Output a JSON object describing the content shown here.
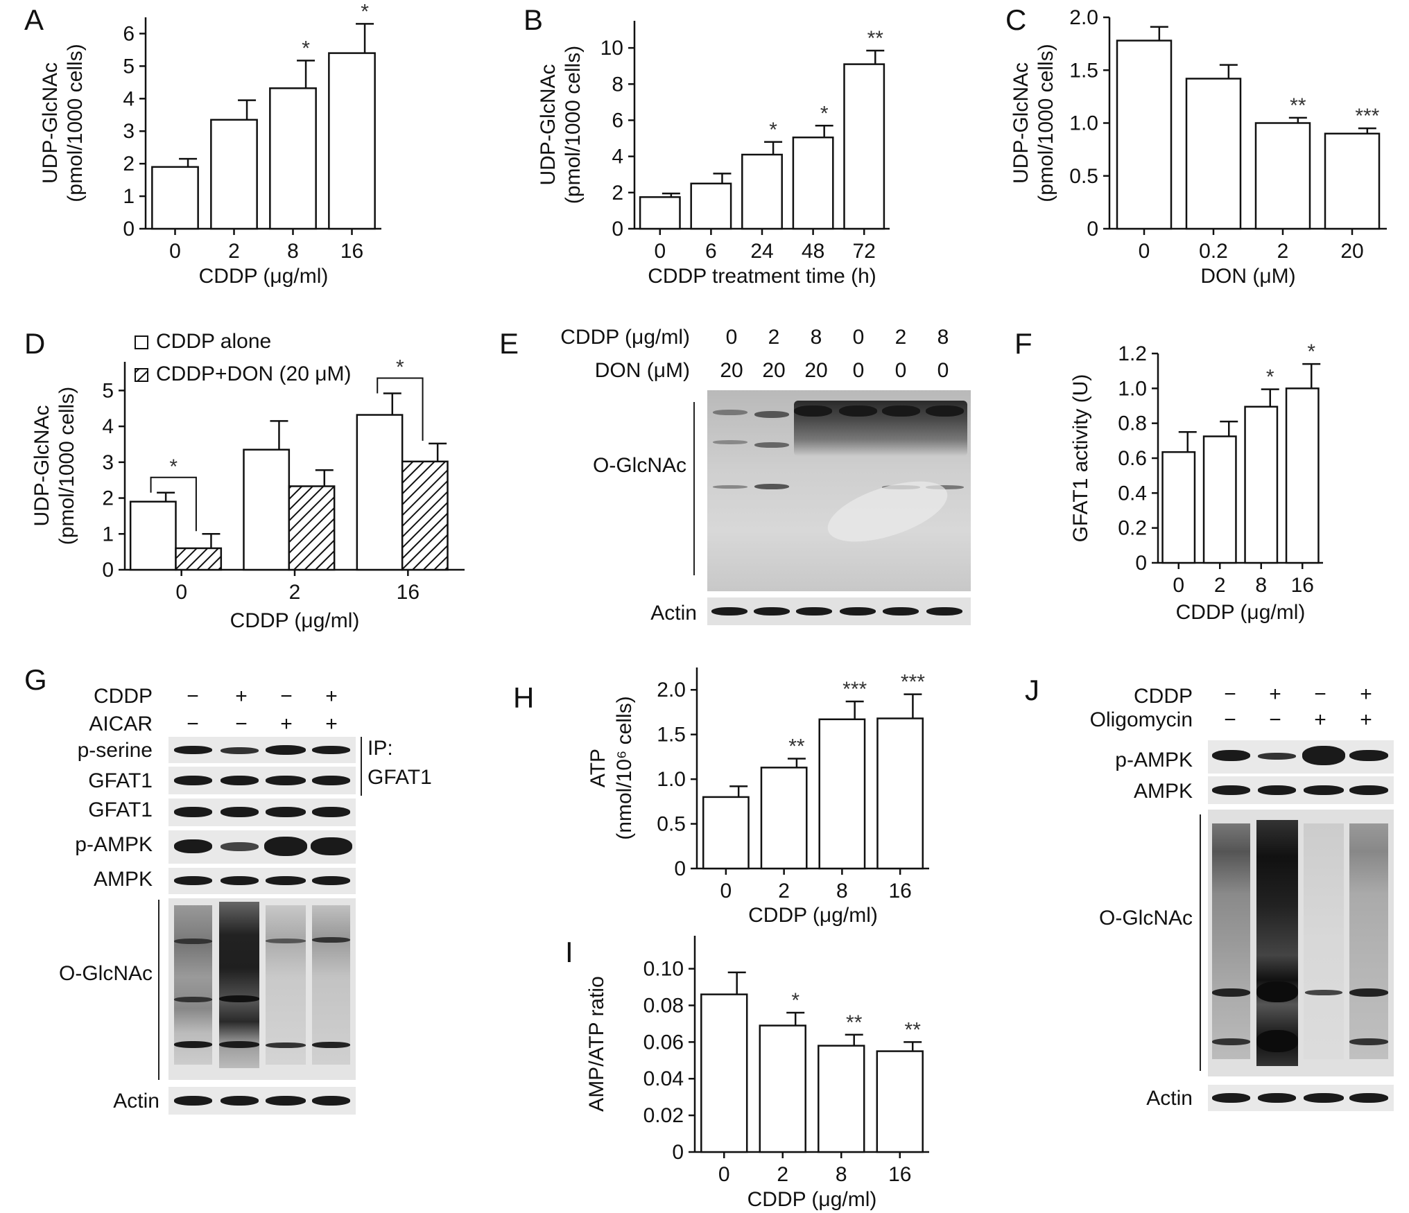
{
  "panels": {
    "A": {
      "letter": "A",
      "ylabel_line1": "UDP-GlcNAc",
      "ylabel_line2": "(pmol/1000 cells)",
      "xlabel": "CDDP (μg/ml)"
    },
    "B": {
      "letter": "B",
      "ylabel_line1": "UDP-GlcNAc",
      "ylabel_line2": "(pmol/1000 cells)",
      "xlabel": "CDDP treatment time (h)"
    },
    "C": {
      "letter": "C",
      "ylabel_line1": "UDP-GlcNAc",
      "ylabel_line2": "(pmol/1000 cells)",
      "xlabel": "DON (μM)"
    },
    "D": {
      "letter": "D",
      "ylabel_line1": "UDP-GlcNAc",
      "ylabel_line2": "(pmol/1000 cells)",
      "xlabel": "CDDP (μg/ml)",
      "legend": [
        "CDDP alone",
        "CDDP+DON (20 μM)"
      ]
    },
    "E": {
      "letter": "E",
      "row_labels": [
        "CDDP (μg/ml)",
        "DON (μM)"
      ],
      "cddp_values": [
        "0",
        "2",
        "8",
        "0",
        "2",
        "8"
      ],
      "don_values": [
        "20",
        "20",
        "20",
        "0",
        "0",
        "0"
      ],
      "blot_labels": [
        "O-GlcNAc",
        "Actin"
      ]
    },
    "F": {
      "letter": "F",
      "ylabel_line1": "GFAT1 activity (U)",
      "xlabel": "CDDP (μg/ml)"
    },
    "G": {
      "letter": "G",
      "row_labels": [
        "CDDP",
        "AICAR"
      ],
      "cddp_signs": [
        "−",
        "+",
        "−",
        "+"
      ],
      "aicar_signs": [
        "−",
        "−",
        "+",
        "+"
      ],
      "blot_labels": [
        "p-serine",
        "GFAT1",
        "GFAT1",
        "p-AMPK",
        "AMPK",
        "O-GlcNAc",
        "Actin"
      ],
      "ip_label_line1": "IP:",
      "ip_label_line2": "GFAT1"
    },
    "H": {
      "letter": "H",
      "ylabel_line1": "ATP",
      "ylabel_line2": "(nmol/10⁶ cells)",
      "xlabel": "CDDP (μg/ml)"
    },
    "I": {
      "letter": "I",
      "ylabel_line1": "AMP/ATP ratio",
      "xlabel": "CDDP (μg/ml)"
    },
    "J": {
      "letter": "J",
      "row_labels": [
        "CDDP",
        "Oligomycin"
      ],
      "cddp_signs": [
        "−",
        "+",
        "−",
        "+"
      ],
      "oligo_signs": [
        "−",
        "−",
        "+",
        "+"
      ],
      "blot_labels": [
        "p-AMPK",
        "AMPK",
        "O-GlcNAc",
        "Actin"
      ]
    }
  },
  "chart_data": [
    {
      "panel": "A",
      "type": "bar",
      "categories": [
        "0",
        "2",
        "8",
        "16"
      ],
      "values": [
        1.9,
        3.35,
        4.32,
        5.4
      ],
      "errors": [
        0.25,
        0.6,
        0.85,
        0.9
      ],
      "significance": [
        "",
        "",
        "*",
        "*"
      ],
      "ylim": [
        0,
        6.5
      ],
      "yticks": [
        0,
        1,
        2,
        3,
        4,
        5,
        6
      ],
      "ylabel": "UDP-GlcNAc (pmol/1000 cells)",
      "xlabel": "CDDP (μg/ml)"
    },
    {
      "panel": "B",
      "type": "bar",
      "categories": [
        "0",
        "6",
        "24",
        "48",
        "72"
      ],
      "values": [
        1.75,
        2.5,
        4.1,
        5.05,
        9.1
      ],
      "errors": [
        0.2,
        0.55,
        0.7,
        0.65,
        0.75
      ],
      "significance": [
        "",
        "",
        "*",
        "*",
        "**"
      ],
      "ylim": [
        0,
        11.5
      ],
      "yticks": [
        0,
        2,
        4,
        6,
        8,
        10
      ],
      "ylabel": "UDP-GlcNAc (pmol/1000 cells)",
      "xlabel": "CDDP treatment time (h)"
    },
    {
      "panel": "C",
      "type": "bar",
      "categories": [
        "0",
        "0.2",
        "2",
        "20"
      ],
      "values": [
        1.78,
        1.42,
        1.0,
        0.9
      ],
      "errors": [
        0.13,
        0.13,
        0.05,
        0.05
      ],
      "significance": [
        "",
        "",
        "**",
        "***"
      ],
      "ylim": [
        0,
        2.0
      ],
      "yticks": [
        0,
        0.5,
        1.0,
        1.5,
        2.0
      ],
      "ytick_labels": [
        "0",
        "0.5",
        "1.0",
        "1.5",
        "2.0"
      ],
      "ylabel": "UDP-GlcNAc (pmol/1000 cells)",
      "xlabel": "DON (μM)"
    },
    {
      "panel": "D",
      "type": "bar",
      "categories": [
        "0",
        "2",
        "16"
      ],
      "series": [
        {
          "name": "CDDP alone",
          "values": [
            1.9,
            3.35,
            4.32
          ],
          "errors": [
            0.25,
            0.8,
            0.6
          ]
        },
        {
          "name": "CDDP+DON (20 μM)",
          "values": [
            0.6,
            2.33,
            3.02
          ],
          "errors": [
            0.4,
            0.45,
            0.5
          ]
        }
      ],
      "significance": [
        "*",
        "",
        "*"
      ],
      "ylim": [
        0,
        5.8
      ],
      "yticks": [
        0,
        1,
        2,
        3,
        4,
        5
      ],
      "ylabel": "UDP-GlcNAc (pmol/1000 cells)",
      "xlabel": "CDDP (μg/ml)"
    },
    {
      "panel": "F",
      "type": "bar",
      "categories": [
        "0",
        "2",
        "8",
        "16"
      ],
      "values": [
        0.635,
        0.725,
        0.895,
        1.0
      ],
      "errors": [
        0.115,
        0.085,
        0.1,
        0.14
      ],
      "significance": [
        "",
        "",
        "*",
        "*"
      ],
      "ylim": [
        0,
        1.2
      ],
      "yticks": [
        0,
        0.2,
        0.4,
        0.6,
        0.8,
        1.0,
        1.2
      ],
      "ytick_labels": [
        "0",
        "0.2",
        "0.4",
        "0.6",
        "0.8",
        "1.0",
        "1.2"
      ],
      "ylabel": "GFAT1 activity (U)",
      "xlabel": "CDDP (μg/ml)"
    },
    {
      "panel": "H",
      "type": "bar",
      "categories": [
        "0",
        "2",
        "8",
        "16"
      ],
      "values": [
        0.8,
        1.13,
        1.67,
        1.68
      ],
      "errors": [
        0.12,
        0.1,
        0.2,
        0.27
      ],
      "significance": [
        "",
        "**",
        "***",
        "***"
      ],
      "ylim": [
        0,
        2.25
      ],
      "yticks": [
        0,
        0.5,
        1.0,
        1.5,
        2.0
      ],
      "ytick_labels": [
        "0",
        "0.5",
        "1.0",
        "1.5",
        "2.0"
      ],
      "ylabel": "ATP (nmol/10⁶ cells)",
      "xlabel": "CDDP (μg/ml)"
    },
    {
      "panel": "I",
      "type": "bar",
      "categories": [
        "0",
        "2",
        "8",
        "16"
      ],
      "values": [
        0.086,
        0.069,
        0.058,
        0.055
      ],
      "errors": [
        0.012,
        0.007,
        0.006,
        0.005
      ],
      "significance": [
        "",
        "*",
        "**",
        "**"
      ],
      "ylim": [
        0,
        0.118
      ],
      "yticks": [
        0,
        0.02,
        0.04,
        0.06,
        0.08,
        0.1
      ],
      "ytick_labels": [
        "0",
        "0.02",
        "0.04",
        "0.06",
        "0.08",
        "0.10"
      ],
      "ylabel": "AMP/ATP ratio",
      "xlabel": "CDDP (μg/ml)"
    }
  ]
}
